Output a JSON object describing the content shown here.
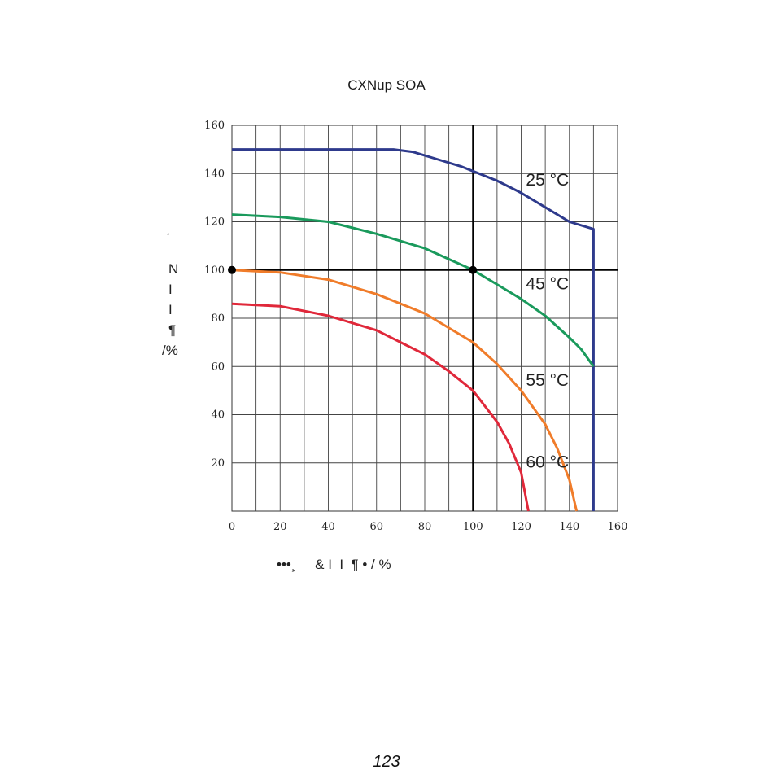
{
  "chart_data": {
    "type": "line",
    "title": "CXNup SOA",
    "xlim": [
      0,
      160
    ],
    "ylim": [
      0,
      160
    ],
    "x_ticks": [
      0,
      20,
      40,
      60,
      80,
      100,
      120,
      140,
      160
    ],
    "y_ticks": [
      20,
      40,
      60,
      80,
      100,
      120,
      140,
      160
    ],
    "grid": true,
    "xlabel": "•••¸     & I  I  ¶ • / %",
    "ylabel_lines": [
      "¸",
      "N",
      "I",
      "I",
      "¶",
      "/%"
    ],
    "series": [
      {
        "name": "25 °C",
        "color": "#2e3a8c",
        "x": [
          0,
          67,
          75,
          85,
          95,
          100,
          110,
          120,
          130,
          140,
          150,
          150
        ],
        "y": [
          150,
          150,
          149,
          146,
          143,
          141,
          137,
          132,
          126,
          120,
          117,
          0
        ]
      },
      {
        "name": "45 °C",
        "color": "#1a9a5c",
        "x": [
          0,
          20,
          40,
          60,
          80,
          100,
          110,
          120,
          130,
          140,
          145,
          150
        ],
        "y": [
          123,
          122,
          120,
          115,
          109,
          100,
          94,
          88,
          81,
          72,
          67,
          60
        ]
      },
      {
        "name": "55 °C",
        "color": "#f07c2a",
        "x": [
          0,
          20,
          40,
          60,
          80,
          100,
          110,
          120,
          130,
          135,
          140,
          143
        ],
        "y": [
          100,
          99,
          96,
          90,
          82,
          70,
          61,
          50,
          36,
          26,
          13,
          0
        ]
      },
      {
        "name": "60 °C",
        "color": "#e0283a",
        "x": [
          0,
          20,
          40,
          60,
          80,
          90,
          100,
          110,
          115,
          120,
          123
        ],
        "y": [
          86,
          85,
          81,
          75,
          65,
          58,
          50,
          37,
          28,
          16,
          0
        ]
      }
    ],
    "reference_lines": {
      "x": 100,
      "y": 100
    },
    "points": [
      {
        "x": 0,
        "y": 100
      },
      {
        "x": 100,
        "y": 100
      }
    ],
    "annotations": [
      {
        "text": "25 °C",
        "x": 122,
        "y": 135
      },
      {
        "text": "45 °C",
        "x": 122,
        "y": 92
      },
      {
        "text": "55 °C",
        "x": 122,
        "y": 52
      },
      {
        "text": "60 °C",
        "x": 122,
        "y": 18
      }
    ]
  },
  "page_number": "123"
}
